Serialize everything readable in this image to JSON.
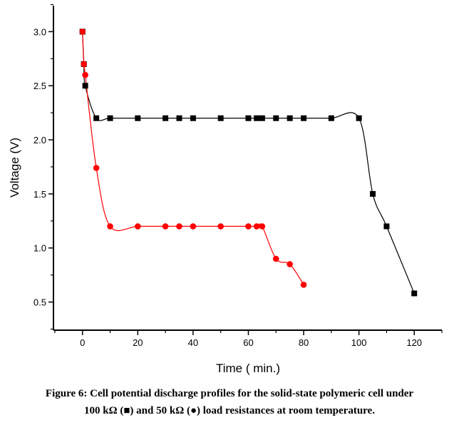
{
  "chart_data": {
    "type": "line",
    "xlabel": "Time ( min.)",
    "ylabel": "Voltage (V)",
    "xlim": [
      -10.5,
      130
    ],
    "ylim": [
      0.24,
      3.24
    ],
    "xticks": [
      0,
      20,
      40,
      60,
      80,
      100,
      120
    ],
    "yticks": [
      "0.5",
      "1.0",
      "1.5",
      "2.0",
      "2.5",
      "3.0"
    ],
    "grid": false,
    "series": [
      {
        "name": "100 kΩ (■)",
        "marker": "square",
        "color": "#000000",
        "x": [
          0,
          0.5,
          1,
          5,
          10,
          20,
          30,
          35,
          40,
          50,
          60,
          63,
          65,
          70,
          75,
          80,
          90,
          100,
          105,
          110,
          120
        ],
        "y": [
          3.0,
          2.7,
          2.5,
          2.2,
          2.2,
          2.2,
          2.2,
          2.2,
          2.2,
          2.2,
          2.2,
          2.2,
          2.2,
          2.2,
          2.2,
          2.2,
          2.2,
          2.2,
          1.5,
          1.2,
          0.58
        ]
      },
      {
        "name": "50 kΩ (●)",
        "marker": "circle",
        "color": "#ff0000",
        "x": [
          0,
          0.5,
          1,
          5,
          10,
          20,
          30,
          35,
          40,
          50,
          60,
          63,
          65,
          70,
          75,
          80
        ],
        "y": [
          3.0,
          2.7,
          2.6,
          1.74,
          1.2,
          1.2,
          1.2,
          1.2,
          1.2,
          1.2,
          1.2,
          1.2,
          1.2,
          0.9,
          0.85,
          0.66
        ]
      }
    ]
  },
  "caption": {
    "line1": "Figure 6: Cell potential discharge profiles for the solid-state polymeric cell under",
    "line2": "100 kΩ (■) and 50 kΩ (●) load resistances at room temperature."
  }
}
